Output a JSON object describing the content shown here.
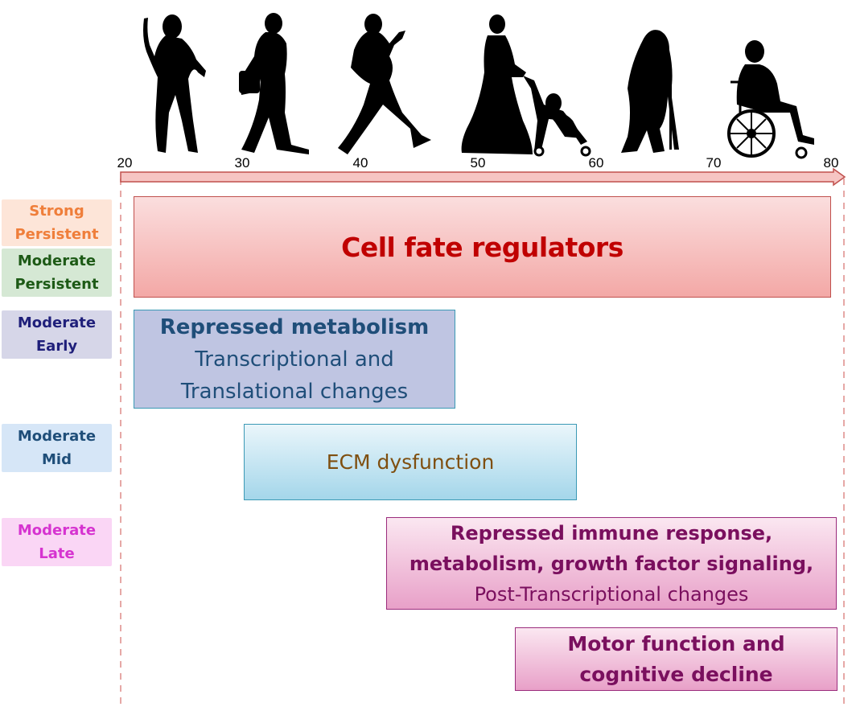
{
  "axis": {
    "ticks": [
      "20",
      "30",
      "40",
      "50",
      "60",
      "70",
      "80"
    ],
    "colors": {
      "arrow_fill": "#f6c5c3",
      "arrow_stroke": "#c0504d",
      "guide": "#e6a8a6"
    }
  },
  "figures": [
    {
      "name": "young-woman-silhouette"
    },
    {
      "name": "walking-woman-with-bag-silhouette"
    },
    {
      "name": "pregnant-woman-walking-silhouette"
    },
    {
      "name": "woman-with-stroller-silhouette"
    },
    {
      "name": "elderly-woman-with-cane-silhouette"
    },
    {
      "name": "person-in-wheelchair-silhouette"
    }
  ],
  "labels": {
    "strong_persistent": {
      "line1": "Strong",
      "line2": "Persistent",
      "color": "#ef7e3a",
      "bg": "#fde5d8"
    },
    "moderate_persistent": {
      "line1": "Moderate",
      "line2": "Persistent",
      "color": "#1d5a16",
      "bg": "#d5e8d4"
    },
    "moderate_early": {
      "line1": "Moderate",
      "line2": "Early",
      "color": "#1f1f7a",
      "bg": "#d6d6e8"
    },
    "moderate_mid": {
      "line1": "Moderate",
      "line2": "Mid",
      "color": "#1f4e79",
      "bg": "#d6e6f7"
    },
    "moderate_late": {
      "line1": "Moderate",
      "line2": "Late",
      "color": "#d633d0",
      "bg": "#fad6f5"
    }
  },
  "bars": {
    "cell_fate": {
      "line1": "Cell fate regulators"
    },
    "early": {
      "line1": "Repressed metabolism",
      "line2": "Transcriptional and",
      "line3": "Translational changes"
    },
    "mid": {
      "line1": "ECM dysfunction"
    },
    "late": {
      "line1": "Repressed immune response,",
      "line2": "metabolism, growth factor signaling,",
      "line3": "Post-Transcriptional changes"
    },
    "motor": {
      "line1": "Motor function and",
      "line2": "cognitive decline"
    }
  }
}
